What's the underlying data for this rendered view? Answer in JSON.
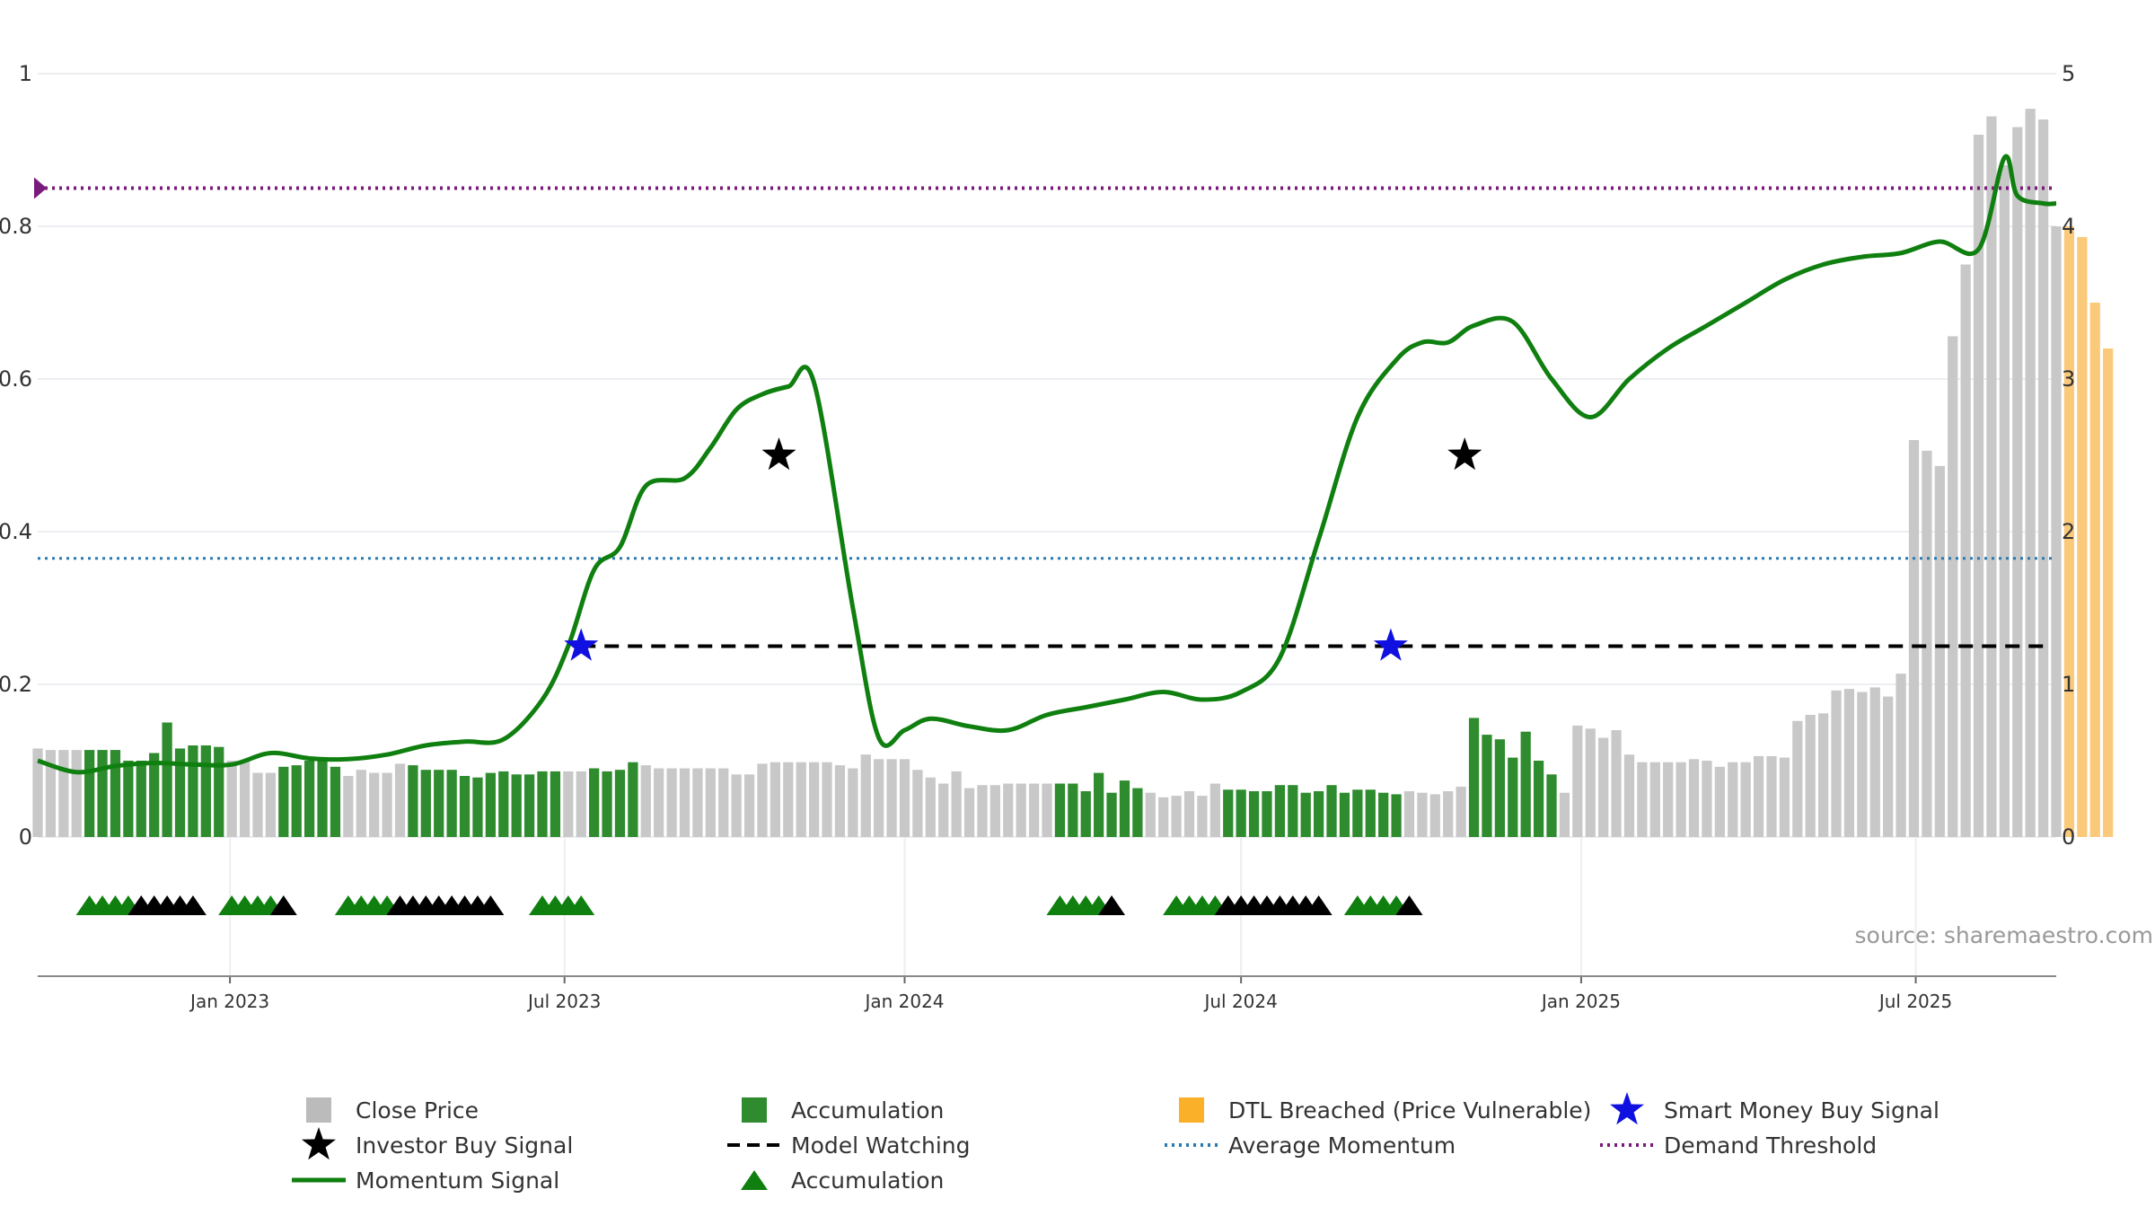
{
  "source": "source: sharemaestro.com",
  "chart_data": {
    "type": "bar",
    "left_axis": {
      "range": [
        0,
        1
      ],
      "ticks": [
        "0",
        "0.2",
        "0.4",
        "0.6",
        "0.8",
        "1"
      ]
    },
    "right_axis": {
      "range": [
        0,
        5
      ],
      "ticks": [
        "0",
        "1",
        "2",
        "3",
        "4",
        "5"
      ]
    },
    "x_axis": {
      "range": [
        "2022-09-19",
        "2025-09-15"
      ],
      "ticks": [
        {
          "date": "2023-01-01",
          "label": "Jan 2023"
        },
        {
          "date": "2023-07-01",
          "label": "Jul 2023"
        },
        {
          "date": "2024-01-01",
          "label": "Jan 2024"
        },
        {
          "date": "2024-07-01",
          "label": "Jul 2024"
        },
        {
          "date": "2025-01-01",
          "label": "Jan 2025"
        },
        {
          "date": "2025-07-01",
          "label": "Jul 2025"
        }
      ]
    },
    "grid": true,
    "legend_position": "bottom",
    "series_colors": {
      "close_price": "#c8c8c8",
      "accumulation": "#2e8b2e",
      "dtl_breached": "#fbc97a",
      "momentum": "#0f7f0f",
      "model_watching": "#000000",
      "average_momentum": "#2a7ab0",
      "demand_threshold": "#7a1a7a",
      "smart_money": "#1010e0",
      "investor_buy": "#000000"
    },
    "bars": {
      "start": "2022-09-19",
      "step_days": 7,
      "values": [
        0.58,
        0.57,
        0.57,
        0.57,
        0.57,
        0.57,
        0.57,
        0.5,
        0.5,
        0.55,
        0.75,
        0.58,
        0.6,
        0.6,
        0.59,
        0.5,
        0.5,
        0.42,
        0.42,
        0.46,
        0.47,
        0.5,
        0.52,
        0.46,
        0.4,
        0.44,
        0.42,
        0.42,
        0.48,
        0.47,
        0.44,
        0.44,
        0.44,
        0.4,
        0.39,
        0.42,
        0.43,
        0.41,
        0.41,
        0.43,
        0.43,
        0.43,
        0.43,
        0.45,
        0.43,
        0.44,
        0.49,
        0.47,
        0.45,
        0.45,
        0.45,
        0.45,
        0.45,
        0.45,
        0.41,
        0.41,
        0.48,
        0.49,
        0.49,
        0.49,
        0.49,
        0.49,
        0.47,
        0.45,
        0.54,
        0.51,
        0.51,
        0.51,
        0.44,
        0.39,
        0.35,
        0.43,
        0.32,
        0.34,
        0.34,
        0.35,
        0.35,
        0.35,
        0.35,
        0.35,
        0.35,
        0.3,
        0.42,
        0.29,
        0.37,
        0.32,
        0.29,
        0.26,
        0.27,
        0.3,
        0.27,
        0.35,
        0.31,
        0.31,
        0.3,
        0.3,
        0.34,
        0.34,
        0.29,
        0.3,
        0.34,
        0.29,
        0.31,
        0.31,
        0.29,
        0.28,
        0.3,
        0.29,
        0.28,
        0.3,
        0.33,
        0.78,
        0.67,
        0.64,
        0.52,
        0.69,
        0.5,
        0.41,
        0.29,
        0.73,
        0.71,
        0.65,
        0.7,
        0.54,
        0.49,
        0.49,
        0.49,
        0.49,
        0.51,
        0.5,
        0.46,
        0.49,
        0.49,
        0.53,
        0.53,
        0.52,
        0.76,
        0.8,
        0.81,
        0.96,
        0.97,
        0.95,
        0.98,
        0.92,
        1.07,
        2.6,
        2.53,
        2.43,
        3.28,
        3.75,
        4.6,
        4.72,
        4.4,
        4.65,
        4.77,
        4.7,
        4.0,
        4.0,
        3.93,
        3.5,
        3.2
      ],
      "kinds": [
        "p",
        "p",
        "p",
        "p",
        "a",
        "a",
        "a",
        "a",
        "a",
        "a",
        "a",
        "a",
        "a",
        "a",
        "a",
        "p",
        "p",
        "p",
        "p",
        "a",
        "a",
        "a",
        "a",
        "a",
        "p",
        "p",
        "p",
        "p",
        "p",
        "a",
        "a",
        "a",
        "a",
        "a",
        "a",
        "a",
        "a",
        "a",
        "a",
        "a",
        "a",
        "p",
        "p",
        "a",
        "a",
        "a",
        "a",
        "p",
        "p",
        "p",
        "p",
        "p",
        "p",
        "p",
        "p",
        "p",
        "p",
        "p",
        "p",
        "p",
        "p",
        "p",
        "p",
        "p",
        "p",
        "p",
        "p",
        "p",
        "p",
        "p",
        "p",
        "p",
        "p",
        "p",
        "p",
        "p",
        "p",
        "p",
        "p",
        "a",
        "a",
        "a",
        "a",
        "a",
        "a",
        "a",
        "p",
        "p",
        "p",
        "p",
        "p",
        "p",
        "a",
        "a",
        "a",
        "a",
        "a",
        "a",
        "a",
        "a",
        "a",
        "a",
        "a",
        "a",
        "a",
        "a",
        "p",
        "p",
        "p",
        "p",
        "p",
        "a",
        "a",
        "a",
        "a",
        "a",
        "a",
        "a",
        "p",
        "p",
        "p",
        "p",
        "p",
        "p",
        "p",
        "p",
        "p",
        "p",
        "p",
        "p",
        "p",
        "p",
        "p",
        "p",
        "p",
        "p",
        "p",
        "p",
        "p",
        "p",
        "p",
        "p",
        "p",
        "p",
        "p",
        "p",
        "p",
        "p",
        "p",
        "p",
        "p",
        "p",
        "p",
        "p",
        "p",
        "p",
        "p",
        "d",
        "d",
        "d",
        "d",
        "d",
        "d",
        "d",
        "p",
        "p",
        "p",
        "p",
        "p"
      ]
    },
    "momentum": {
      "x": [
        "2022-09-19",
        "2022-10-10",
        "2022-10-31",
        "2022-11-21",
        "2022-12-12",
        "2023-01-02",
        "2023-01-23",
        "2023-02-13",
        "2023-03-06",
        "2023-03-27",
        "2023-04-17",
        "2023-05-08",
        "2023-05-29",
        "2023-06-19",
        "2023-07-03",
        "2023-07-17",
        "2023-07-31",
        "2023-08-14",
        "2023-09-04",
        "2023-09-18",
        "2023-10-02",
        "2023-10-16",
        "2023-10-30",
        "2023-11-13",
        "2023-12-04",
        "2023-12-18",
        "2024-01-01",
        "2024-01-15",
        "2024-02-05",
        "2024-02-26",
        "2024-03-18",
        "2024-04-08",
        "2024-04-29",
        "2024-05-20",
        "2024-06-10",
        "2024-07-01",
        "2024-07-22",
        "2024-08-12",
        "2024-09-02",
        "2024-09-23",
        "2024-10-07",
        "2024-10-21",
        "2024-11-04",
        "2024-11-25",
        "2024-12-16",
        "2025-01-06",
        "2025-01-27",
        "2025-02-17",
        "2025-03-10",
        "2025-03-31",
        "2025-04-21",
        "2025-05-12",
        "2025-06-02",
        "2025-06-23",
        "2025-07-14",
        "2025-08-04",
        "2025-08-18",
        "2025-08-25",
        "2025-09-08",
        "2025-09-15"
      ],
      "y": [
        0.1,
        0.085,
        0.093,
        0.097,
        0.095,
        0.095,
        0.11,
        0.103,
        0.102,
        0.108,
        0.12,
        0.125,
        0.128,
        0.18,
        0.25,
        0.35,
        0.38,
        0.46,
        0.47,
        0.51,
        0.56,
        0.58,
        0.59,
        0.595,
        0.3,
        0.13,
        0.14,
        0.155,
        0.145,
        0.14,
        0.16,
        0.17,
        0.18,
        0.19,
        0.18,
        0.19,
        0.235,
        0.39,
        0.55,
        0.625,
        0.648,
        0.648,
        0.67,
        0.675,
        0.6,
        0.55,
        0.6,
        0.64,
        0.67,
        0.7,
        0.73,
        0.75,
        0.76,
        0.765,
        0.78,
        0.77,
        0.89,
        0.84,
        0.83,
        0.83
      ]
    },
    "average_momentum": 0.365,
    "demand_threshold": 0.85,
    "model_watching": {
      "start": "2023-07-10",
      "end": "2025-09-08",
      "value": 0.25
    },
    "smart_money_buy_signals": [
      {
        "date": "2023-07-10",
        "value": 0.25
      },
      {
        "date": "2024-09-20",
        "value": 0.25
      }
    ],
    "investor_buy_signals": [
      {
        "date": "2023-10-25",
        "value": 0.5
      },
      {
        "date": "2024-10-30",
        "value": 0.5
      }
    ],
    "accumulation_markers": [
      {
        "date": "2022-10-17",
        "color": "green"
      },
      {
        "date": "2022-10-24",
        "color": "green"
      },
      {
        "date": "2022-10-31",
        "color": "green"
      },
      {
        "date": "2022-11-07",
        "color": "green"
      },
      {
        "date": "2022-11-14",
        "color": "black"
      },
      {
        "date": "2022-11-21",
        "color": "black"
      },
      {
        "date": "2022-11-28",
        "color": "black"
      },
      {
        "date": "2022-12-05",
        "color": "black"
      },
      {
        "date": "2022-12-12",
        "color": "black"
      },
      {
        "date": "2023-01-02",
        "color": "green"
      },
      {
        "date": "2023-01-09",
        "color": "green"
      },
      {
        "date": "2023-01-16",
        "color": "green"
      },
      {
        "date": "2023-01-23",
        "color": "green"
      },
      {
        "date": "2023-01-30",
        "color": "black"
      },
      {
        "date": "2023-03-06",
        "color": "green"
      },
      {
        "date": "2023-03-13",
        "color": "green"
      },
      {
        "date": "2023-03-20",
        "color": "green"
      },
      {
        "date": "2023-03-27",
        "color": "green"
      },
      {
        "date": "2023-04-03",
        "color": "black"
      },
      {
        "date": "2023-04-10",
        "color": "black"
      },
      {
        "date": "2023-04-17",
        "color": "black"
      },
      {
        "date": "2023-04-24",
        "color": "black"
      },
      {
        "date": "2023-05-01",
        "color": "black"
      },
      {
        "date": "2023-05-08",
        "color": "black"
      },
      {
        "date": "2023-05-15",
        "color": "black"
      },
      {
        "date": "2023-05-22",
        "color": "black"
      },
      {
        "date": "2023-06-19",
        "color": "green"
      },
      {
        "date": "2023-06-26",
        "color": "green"
      },
      {
        "date": "2023-07-03",
        "color": "green"
      },
      {
        "date": "2023-07-10",
        "color": "green"
      },
      {
        "date": "2024-03-25",
        "color": "green"
      },
      {
        "date": "2024-04-01",
        "color": "green"
      },
      {
        "date": "2024-04-08",
        "color": "green"
      },
      {
        "date": "2024-04-15",
        "color": "green"
      },
      {
        "date": "2024-04-22",
        "color": "black"
      },
      {
        "date": "2024-05-27",
        "color": "green"
      },
      {
        "date": "2024-06-03",
        "color": "green"
      },
      {
        "date": "2024-06-10",
        "color": "green"
      },
      {
        "date": "2024-06-17",
        "color": "green"
      },
      {
        "date": "2024-06-24",
        "color": "black"
      },
      {
        "date": "2024-07-01",
        "color": "black"
      },
      {
        "date": "2024-07-08",
        "color": "black"
      },
      {
        "date": "2024-07-15",
        "color": "black"
      },
      {
        "date": "2024-07-22",
        "color": "black"
      },
      {
        "date": "2024-07-29",
        "color": "black"
      },
      {
        "date": "2024-08-05",
        "color": "black"
      },
      {
        "date": "2024-08-12",
        "color": "black"
      },
      {
        "date": "2024-09-02",
        "color": "green"
      },
      {
        "date": "2024-09-09",
        "color": "green"
      },
      {
        "date": "2024-09-16",
        "color": "green"
      },
      {
        "date": "2024-09-23",
        "color": "green"
      },
      {
        "date": "2024-09-30",
        "color": "black"
      }
    ],
    "legend": [
      {
        "label": "Close Price",
        "symbol": "square",
        "color": "#bbbbbb"
      },
      {
        "label": "Accumulation",
        "symbol": "square",
        "color": "#2e8b2e"
      },
      {
        "label": "DTL Breached (Price Vulnerable)",
        "symbol": "square",
        "color": "#fbb02a"
      },
      {
        "label": "Smart Money Buy Signal",
        "symbol": "star",
        "color": "#1010e0"
      },
      {
        "label": "Investor Buy Signal",
        "symbol": "star",
        "color": "#000000"
      },
      {
        "label": "Model Watching",
        "symbol": "dash",
        "color": "#000000"
      },
      {
        "label": "Average Momentum",
        "symbol": "dot",
        "color": "#2a7ab0"
      },
      {
        "label": "Demand Threshold",
        "symbol": "dot",
        "color": "#7a1a7a"
      },
      {
        "label": "Momentum Signal",
        "symbol": "line",
        "color": "#0f7f0f"
      },
      {
        "label": "Accumulation",
        "symbol": "triangle",
        "color": "#0f7f0f"
      }
    ]
  }
}
